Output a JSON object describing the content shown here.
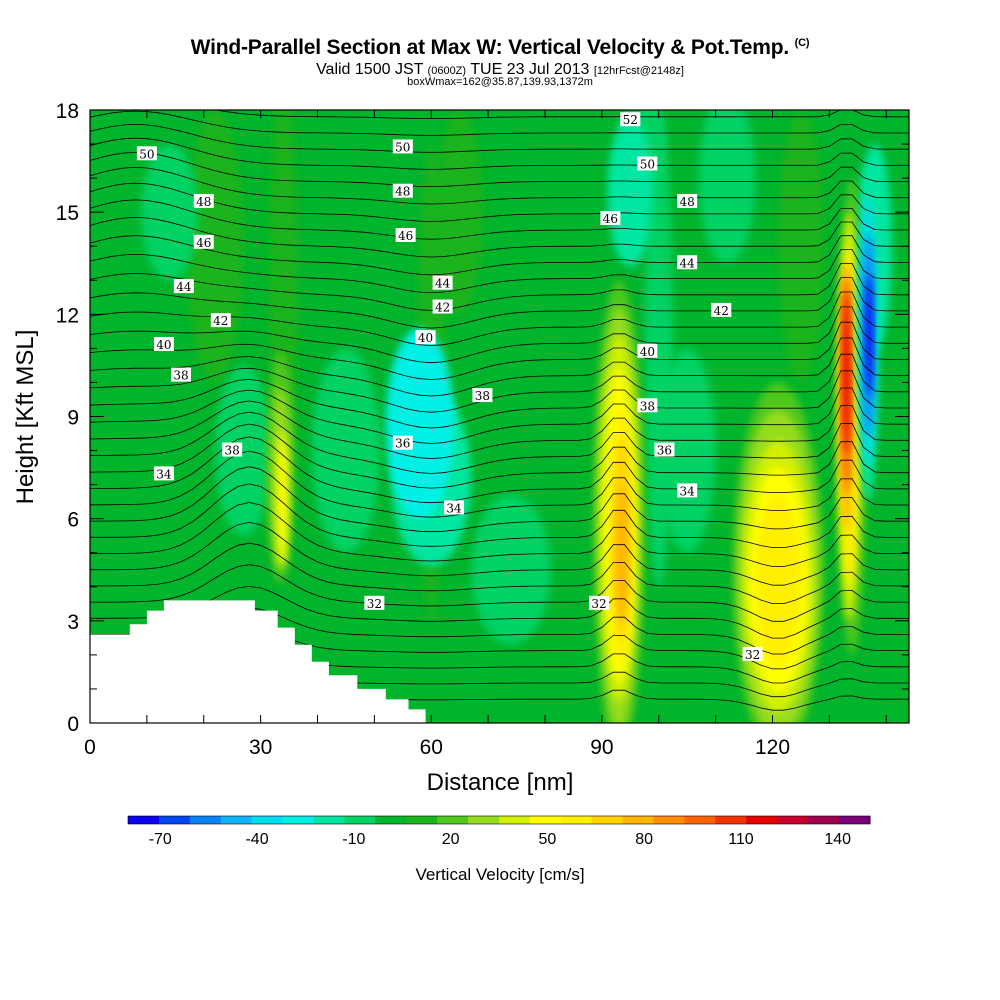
{
  "header": {
    "title": "Wind-Parallel Section at Max W: Vertical Velocity & Pot.Temp.",
    "copyright": "(C)",
    "valid_prefix": "Valid 1500 JST",
    "valid_zulu": "(0600Z)",
    "valid_date": "TUE 23 Jul 2013",
    "forecast": "[12hrFcst@2148z]",
    "box_info": "boxWmax=162@35.87,139.93,1372m"
  },
  "chart_data": {
    "type": "heatmap",
    "xlabel": "Distance [nm]",
    "ylabel": "Height [Kft MSL]",
    "xlim": [
      0,
      144
    ],
    "ylim": [
      0,
      18
    ],
    "x_ticks": [
      "0",
      "30",
      "60",
      "90",
      "120"
    ],
    "y_ticks": [
      "0",
      "3",
      "6",
      "9",
      "12",
      "15",
      "18"
    ],
    "colorbar": {
      "label": "Vertical Velocity [cm/s]",
      "tick_labels": [
        "-70",
        "-40",
        "-10",
        "20",
        "50",
        "80",
        "110",
        "140"
      ],
      "min": -80,
      "max": 150,
      "step": 10,
      "colors": [
        "#0b00f0",
        "#0046f4",
        "#0a82f6",
        "#12b4f8",
        "#00dcf0",
        "#00f0e6",
        "#00e6a0",
        "#00d264",
        "#00b42c",
        "#1eb41e",
        "#50c81e",
        "#96dc1e",
        "#d2f000",
        "#ffff00",
        "#fff000",
        "#ffd200",
        "#ffb400",
        "#ff8c00",
        "#ff6400",
        "#f03200",
        "#e60000",
        "#c8002d",
        "#a00050",
        "#780078"
      ]
    },
    "theta_labels": [
      {
        "text": "50",
        "x": 10,
        "y": 16.7
      },
      {
        "text": "48",
        "x": 20,
        "y": 15.3
      },
      {
        "text": "46",
        "x": 20,
        "y": 14.1
      },
      {
        "text": "44",
        "x": 16.5,
        "y": 12.8
      },
      {
        "text": "42",
        "x": 23,
        "y": 11.8
      },
      {
        "text": "40",
        "x": 13,
        "y": 11.1
      },
      {
        "text": "38",
        "x": 16,
        "y": 10.2
      },
      {
        "text": "38",
        "x": 25,
        "y": 8.0
      },
      {
        "text": "34",
        "x": 13,
        "y": 7.3
      },
      {
        "text": "50",
        "x": 55,
        "y": 16.9
      },
      {
        "text": "48",
        "x": 55,
        "y": 15.6
      },
      {
        "text": "46",
        "x": 55.5,
        "y": 14.3
      },
      {
        "text": "44",
        "x": 62,
        "y": 12.9
      },
      {
        "text": "42",
        "x": 62,
        "y": 12.2
      },
      {
        "text": "40",
        "x": 59,
        "y": 11.3
      },
      {
        "text": "38",
        "x": 69,
        "y": 9.6
      },
      {
        "text": "36",
        "x": 55,
        "y": 8.2
      },
      {
        "text": "34",
        "x": 64,
        "y": 6.3
      },
      {
        "text": "32",
        "x": 50,
        "y": 3.5
      },
      {
        "text": "52",
        "x": 95,
        "y": 17.7
      },
      {
        "text": "50",
        "x": 98,
        "y": 16.4
      },
      {
        "text": "48",
        "x": 105,
        "y": 15.3
      },
      {
        "text": "46",
        "x": 91.5,
        "y": 14.8
      },
      {
        "text": "44",
        "x": 105,
        "y": 13.5
      },
      {
        "text": "42",
        "x": 111,
        "y": 12.1
      },
      {
        "text": "40",
        "x": 98,
        "y": 10.9
      },
      {
        "text": "38",
        "x": 98,
        "y": 9.3
      },
      {
        "text": "36",
        "x": 101,
        "y": 8.0
      },
      {
        "text": "34",
        "x": 105,
        "y": 6.8
      },
      {
        "text": "32",
        "x": 89.5,
        "y": 3.5
      },
      {
        "text": "32",
        "x": 116.5,
        "y": 2.0
      }
    ]
  }
}
